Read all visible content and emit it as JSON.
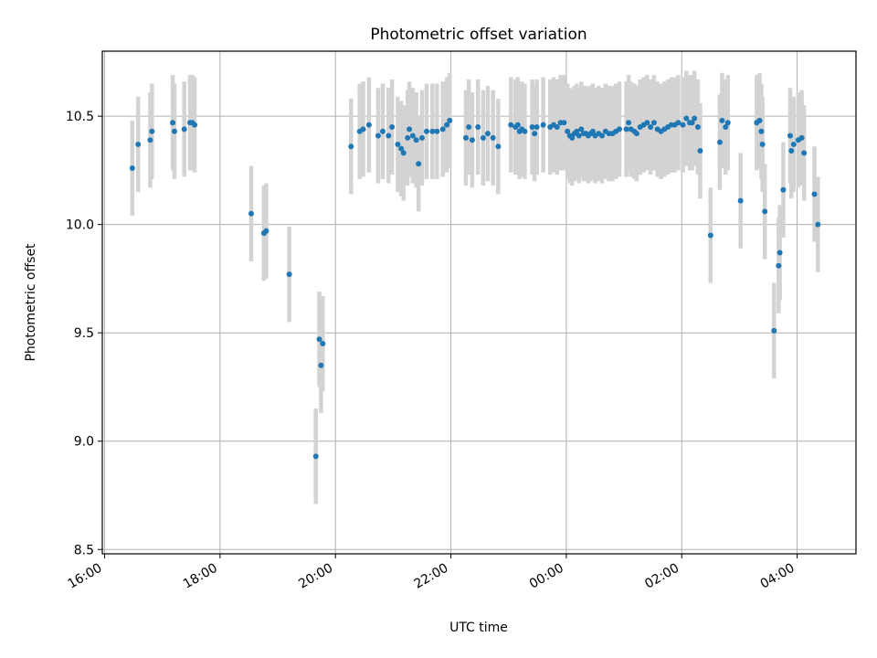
{
  "chart_data": {
    "type": "scatter",
    "title": "Photometric offset variation",
    "xlabel": "UTC time",
    "ylabel": "Photometric offset",
    "x_unit": "hours since 16:00 UTC",
    "xlim": [
      -0.04,
      13.02
    ],
    "ylim": [
      8.48,
      10.8
    ],
    "grid": true,
    "x_ticks": [
      {
        "value": 0,
        "label": "16:00"
      },
      {
        "value": 2,
        "label": "18:00"
      },
      {
        "value": 4,
        "label": "20:00"
      },
      {
        "value": 6,
        "label": "22:00"
      },
      {
        "value": 8,
        "label": "00:00"
      },
      {
        "value": 10,
        "label": "02:00"
      },
      {
        "value": 12,
        "label": "04:00"
      }
    ],
    "y_ticks": [
      {
        "value": 8.5,
        "label": "8.5"
      },
      {
        "value": 9.0,
        "label": "9.0"
      },
      {
        "value": 9.5,
        "label": "9.5"
      },
      {
        "value": 10.0,
        "label": "10.0"
      },
      {
        "value": 10.5,
        "label": "10.5"
      }
    ],
    "colors": {
      "marker": "#1f77b4",
      "errorbar": "#d3d3d3",
      "grid": "#b0b0b0",
      "axis": "#000000"
    },
    "series": [
      {
        "name": "Photometric offset",
        "error": 0.22,
        "points": [
          [
            0.48,
            10.26
          ],
          [
            0.58,
            10.37
          ],
          [
            0.79,
            10.39
          ],
          [
            0.82,
            10.43
          ],
          [
            1.18,
            10.47
          ],
          [
            1.21,
            10.43
          ],
          [
            1.38,
            10.44
          ],
          [
            1.48,
            10.47
          ],
          [
            1.52,
            10.47
          ],
          [
            1.56,
            10.46
          ],
          [
            2.54,
            10.05
          ],
          [
            2.76,
            9.96
          ],
          [
            2.8,
            9.97
          ],
          [
            3.2,
            9.77
          ],
          [
            3.66,
            8.93
          ],
          [
            3.72,
            9.47
          ],
          [
            3.75,
            9.35
          ],
          [
            3.78,
            9.45
          ],
          [
            4.27,
            10.36
          ],
          [
            4.42,
            10.43
          ],
          [
            4.48,
            10.44
          ],
          [
            4.58,
            10.46
          ],
          [
            4.74,
            10.41
          ],
          [
            4.82,
            10.43
          ],
          [
            4.92,
            10.41
          ],
          [
            4.98,
            10.45
          ],
          [
            5.08,
            10.37
          ],
          [
            5.14,
            10.35
          ],
          [
            5.18,
            10.33
          ],
          [
            5.25,
            10.4
          ],
          [
            5.28,
            10.44
          ],
          [
            5.34,
            10.41
          ],
          [
            5.4,
            10.39
          ],
          [
            5.44,
            10.28
          ],
          [
            5.5,
            10.4
          ],
          [
            5.58,
            10.43
          ],
          [
            5.68,
            10.43
          ],
          [
            5.76,
            10.43
          ],
          [
            5.86,
            10.44
          ],
          [
            5.93,
            10.46
          ],
          [
            5.98,
            10.48
          ],
          [
            6.26,
            10.4
          ],
          [
            6.31,
            10.45
          ],
          [
            6.37,
            10.39
          ],
          [
            6.47,
            10.45
          ],
          [
            6.56,
            10.4
          ],
          [
            6.64,
            10.42
          ],
          [
            6.73,
            10.4
          ],
          [
            6.82,
            10.36
          ],
          [
            7.04,
            10.46
          ],
          [
            7.12,
            10.45
          ],
          [
            7.16,
            10.46
          ],
          [
            7.19,
            10.43
          ],
          [
            7.23,
            10.44
          ],
          [
            7.28,
            10.43
          ],
          [
            7.41,
            10.45
          ],
          [
            7.45,
            10.42
          ],
          [
            7.49,
            10.45
          ],
          [
            7.6,
            10.46
          ],
          [
            7.72,
            10.45
          ],
          [
            7.78,
            10.46
          ],
          [
            7.84,
            10.45
          ],
          [
            7.9,
            10.47
          ],
          [
            7.96,
            10.47
          ],
          [
            8.02,
            10.43
          ],
          [
            8.06,
            10.41
          ],
          [
            8.1,
            10.4
          ],
          [
            8.14,
            10.42
          ],
          [
            8.18,
            10.43
          ],
          [
            8.22,
            10.41
          ],
          [
            8.26,
            10.44
          ],
          [
            8.3,
            10.42
          ],
          [
            8.34,
            10.42
          ],
          [
            8.38,
            10.41
          ],
          [
            8.42,
            10.42
          ],
          [
            8.46,
            10.43
          ],
          [
            8.5,
            10.41
          ],
          [
            8.56,
            10.42
          ],
          [
            8.62,
            10.41
          ],
          [
            8.68,
            10.43
          ],
          [
            8.74,
            10.42
          ],
          [
            8.8,
            10.42
          ],
          [
            8.86,
            10.43
          ],
          [
            8.92,
            10.44
          ],
          [
            9.04,
            10.44
          ],
          [
            9.08,
            10.47
          ],
          [
            9.12,
            10.44
          ],
          [
            9.18,
            10.43
          ],
          [
            9.22,
            10.42
          ],
          [
            9.28,
            10.45
          ],
          [
            9.34,
            10.46
          ],
          [
            9.4,
            10.47
          ],
          [
            9.46,
            10.45
          ],
          [
            9.52,
            10.47
          ],
          [
            9.58,
            10.44
          ],
          [
            9.64,
            10.43
          ],
          [
            9.7,
            10.44
          ],
          [
            9.76,
            10.45
          ],
          [
            9.82,
            10.46
          ],
          [
            9.88,
            10.46
          ],
          [
            9.94,
            10.47
          ],
          [
            10.02,
            10.46
          ],
          [
            10.08,
            10.49
          ],
          [
            10.14,
            10.47
          ],
          [
            10.18,
            10.47
          ],
          [
            10.22,
            10.49
          ],
          [
            10.28,
            10.45
          ],
          [
            10.32,
            10.34
          ],
          [
            10.5,
            9.95
          ],
          [
            10.66,
            10.38
          ],
          [
            10.7,
            10.48
          ],
          [
            10.76,
            10.45
          ],
          [
            10.8,
            10.47
          ],
          [
            11.02,
            10.11
          ],
          [
            11.3,
            10.47
          ],
          [
            11.35,
            10.48
          ],
          [
            11.38,
            10.43
          ],
          [
            11.4,
            10.37
          ],
          [
            11.44,
            10.06
          ],
          [
            11.6,
            9.51
          ],
          [
            11.68,
            9.81
          ],
          [
            11.7,
            9.87
          ],
          [
            11.76,
            10.16
          ],
          [
            11.88,
            10.41
          ],
          [
            11.9,
            10.34
          ],
          [
            11.94,
            10.37
          ],
          [
            12.02,
            10.39
          ],
          [
            12.08,
            10.4
          ],
          [
            12.12,
            10.33
          ],
          [
            12.3,
            10.14
          ],
          [
            12.36,
            10.0
          ]
        ]
      }
    ]
  }
}
